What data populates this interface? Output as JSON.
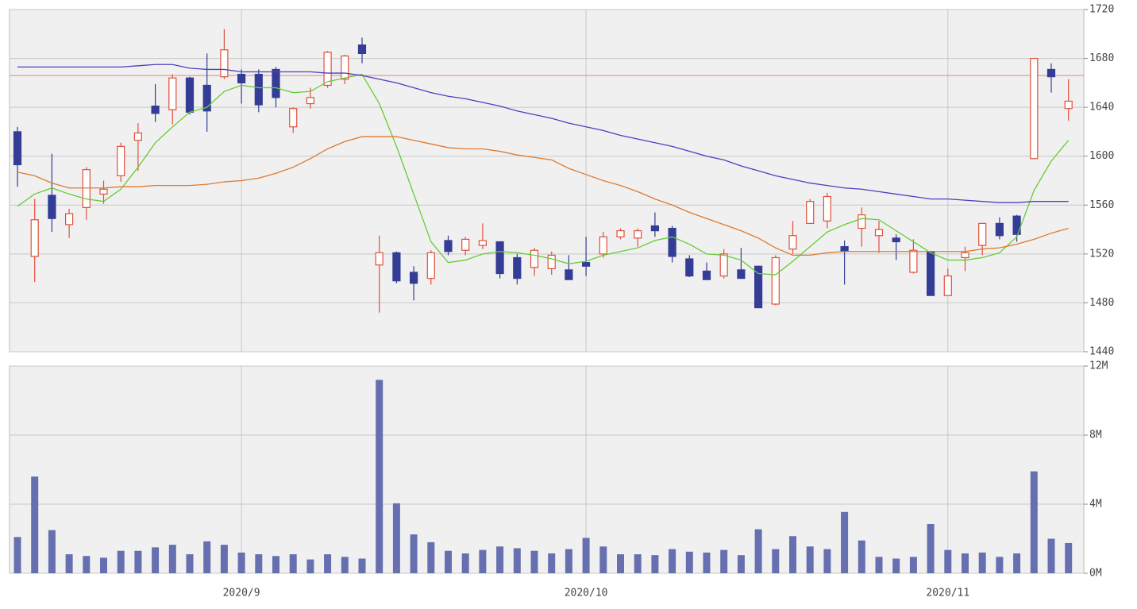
{
  "chart_data": [
    {
      "type": "candlestick",
      "open": [
        1620,
        1518,
        1568,
        1544,
        1558,
        1569,
        1584,
        1613,
        1641,
        1638,
        1664,
        1658,
        1665,
        1667,
        1667,
        1671,
        1624,
        1643,
        1658,
        1663,
        1691,
        1511,
        1521,
        1505,
        1500,
        1531,
        1523,
        1527,
        1530,
        1517,
        1509,
        1508,
        1507,
        1513,
        1520,
        1534,
        1533,
        1543,
        1541,
        1516,
        1506,
        1502,
        1507,
        1510,
        1479,
        1524,
        1545,
        1547,
        1526,
        1541,
        1535,
        1533,
        1505,
        1522,
        1486,
        1517,
        1527,
        1545,
        1551,
        1598,
        1671,
        1639
      ],
      "high": [
        1624,
        1565,
        1602,
        1557,
        1591,
        1580,
        1611,
        1627,
        1659,
        1667,
        1665,
        1684,
        1704,
        1671,
        1671,
        1673,
        1640,
        1656,
        1686,
        1683,
        1697,
        1535,
        1522,
        1510,
        1523,
        1535,
        1534,
        1545,
        1530,
        1520,
        1525,
        1522,
        1519,
        1534,
        1538,
        1541,
        1541,
        1554,
        1543,
        1519,
        1513,
        1524,
        1525,
        1510,
        1519,
        1547,
        1565,
        1570,
        1531,
        1558,
        1547,
        1536,
        1532,
        1522,
        1508,
        1526,
        1545,
        1550,
        1552,
        1680,
        1676,
        1663
      ],
      "low": [
        1575,
        1497,
        1538,
        1533,
        1548,
        1561,
        1579,
        1588,
        1628,
        1626,
        1634,
        1620,
        1663,
        1643,
        1636,
        1640,
        1619,
        1639,
        1656,
        1659,
        1676,
        1472,
        1496,
        1482,
        1495,
        1519,
        1519,
        1524,
        1500,
        1495,
        1502,
        1503,
        1499,
        1502,
        1517,
        1532,
        1526,
        1534,
        1513,
        1501,
        1499,
        1500,
        1500,
        1476,
        1478,
        1520,
        1545,
        1541,
        1495,
        1526,
        1521,
        1515,
        1504,
        1486,
        1486,
        1506,
        1519,
        1532,
        1530,
        1598,
        1652,
        1629
      ],
      "close": [
        1593,
        1548,
        1549,
        1553,
        1589,
        1573,
        1608,
        1619,
        1635,
        1664,
        1636,
        1637,
        1687,
        1660,
        1642,
        1648,
        1639,
        1648,
        1685,
        1682,
        1684,
        1521,
        1498,
        1496,
        1521,
        1522,
        1532,
        1531,
        1504,
        1500,
        1523,
        1519,
        1499,
        1510,
        1534,
        1539,
        1539,
        1539,
        1518,
        1502,
        1499,
        1520,
        1500,
        1476,
        1517,
        1535,
        1563,
        1567,
        1522,
        1552,
        1540,
        1530,
        1523,
        1486,
        1502,
        1521,
        1545,
        1535,
        1536,
        1680,
        1665,
        1645
      ],
      "up_color": "#e0503a",
      "down_color": "#343d96",
      "lines": [
        {
          "color": "#66cc33",
          "values": [
            1559,
            1569,
            1574,
            1569,
            1565,
            1563,
            1573,
            1591,
            1611,
            1624,
            1636,
            1640,
            1653,
            1658,
            1656,
            1656,
            1652,
            1653,
            1661,
            1664,
            1667,
            1643,
            1608,
            1569,
            1530,
            1513,
            1515,
            1520,
            1522,
            1521,
            1519,
            1516,
            1512,
            1514,
            1519,
            1522,
            1525,
            1531,
            1534,
            1528,
            1520,
            1519,
            1515,
            1504,
            1503,
            1514,
            1526,
            1538,
            1544,
            1549,
            1548,
            1539,
            1530,
            1521,
            1515,
            1515,
            1517,
            1521,
            1534,
            1572,
            1596,
            1613
          ]
        },
        {
          "color": "#e07a2e",
          "values": [
            1587,
            1584,
            1578,
            1574,
            1574,
            1574,
            1575,
            1575,
            1576,
            1576,
            1576,
            1577,
            1579,
            1580,
            1582,
            1586,
            1591,
            1598,
            1606,
            1612,
            1616,
            1616,
            1616,
            1613,
            1610,
            1607,
            1606,
            1606,
            1604,
            1601,
            1599,
            1597,
            1590,
            1585,
            1580,
            1576,
            1571,
            1565,
            1560,
            1554,
            1549,
            1544,
            1539,
            1533,
            1525,
            1519,
            1519,
            1521,
            1522,
            1522,
            1522,
            1522,
            1522,
            1522,
            1522,
            1522,
            1524,
            1525,
            1528,
            1532,
            1537,
            1541
          ]
        },
        {
          "color": "#4b3fc0",
          "values": [
            1673,
            1673,
            1673,
            1673,
            1673,
            1673,
            1673,
            1674,
            1675,
            1675,
            1672,
            1671,
            1671,
            1669,
            1669,
            1669,
            1669,
            1669,
            1668,
            1668,
            1666,
            1663,
            1660,
            1656,
            1652,
            1649,
            1647,
            1644,
            1641,
            1637,
            1634,
            1631,
            1627,
            1624,
            1621,
            1617,
            1614,
            1611,
            1608,
            1604,
            1600,
            1597,
            1592,
            1588,
            1584,
            1581,
            1578,
            1576,
            1574,
            1573,
            1571,
            1569,
            1567,
            1565,
            1565,
            1564,
            1563,
            1562,
            1562,
            1563,
            1563,
            1563
          ]
        }
      ],
      "reference_line": 1666,
      "ylim": [
        1440,
        1720
      ],
      "yticks": [
        1440,
        1480,
        1520,
        1560,
        1600,
        1640,
        1680,
        1720
      ]
    },
    {
      "type": "bar",
      "color": "#6670b0",
      "categories": [
        null,
        null,
        null,
        null,
        null,
        null,
        null,
        null,
        null,
        null,
        null,
        null,
        null,
        "2020/9",
        null,
        null,
        null,
        null,
        null,
        null,
        null,
        null,
        null,
        null,
        null,
        null,
        null,
        null,
        null,
        null,
        null,
        null,
        null,
        "2020/10",
        null,
        null,
        null,
        null,
        null,
        null,
        null,
        null,
        null,
        null,
        null,
        null,
        null,
        null,
        null,
        null,
        null,
        null,
        null,
        null,
        "2020/11",
        null,
        null,
        null,
        null,
        null,
        null,
        null
      ],
      "values": [
        2.1,
        5.6,
        2.5,
        1.1,
        1.0,
        0.9,
        1.3,
        1.3,
        1.5,
        1.65,
        1.1,
        1.85,
        1.65,
        1.2,
        1.1,
        1.0,
        1.1,
        0.8,
        1.1,
        0.95,
        0.85,
        11.2,
        4.05,
        2.25,
        1.8,
        1.3,
        1.15,
        1.35,
        1.55,
        1.45,
        1.3,
        1.15,
        1.4,
        2.05,
        1.55,
        1.1,
        1.1,
        1.05,
        1.4,
        1.25,
        1.2,
        1.35,
        1.05,
        2.55,
        1.4,
        2.15,
        1.55,
        1.4,
        3.55,
        1.9,
        0.95,
        0.85,
        0.95,
        2.85,
        1.35,
        1.15,
        1.2,
        0.95,
        1.15,
        5.9,
        2.0,
        1.75
      ],
      "ylim": [
        0,
        12
      ],
      "yticks": [
        {
          "value": 0,
          "label": "0M"
        },
        {
          "value": 4,
          "label": "4M"
        },
        {
          "value": 8,
          "label": "8M"
        },
        {
          "value": 12,
          "label": "12M"
        }
      ]
    }
  ]
}
